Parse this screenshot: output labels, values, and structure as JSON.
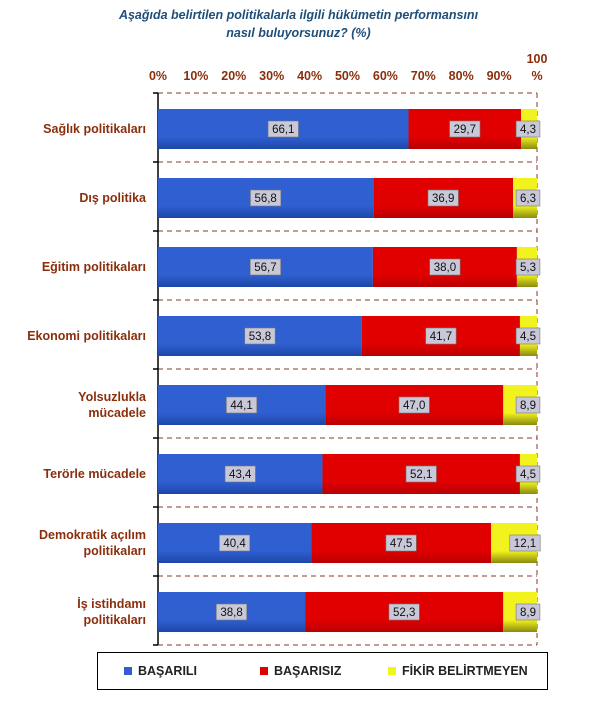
{
  "title_lines": [
    "Aşağıda belirtilen politikalarla ilgili hükümetin performansını",
    "nasıl buluyorsunuz? (%)"
  ],
  "colors": {
    "basarili": "#2f5fd0",
    "basarisiz": "#e00000",
    "fikir": "#f2f21e",
    "axis_text": "#8b2e0c",
    "title": "#1f4e79"
  },
  "chart_data": {
    "type": "bar",
    "orientation": "horizontal",
    "stacked": true,
    "categories": [
      [
        "Sağlık politikaları"
      ],
      [
        "Dış politika"
      ],
      [
        "Eğitim politikaları"
      ],
      [
        "Ekonomi politikaları"
      ],
      [
        "Yolsuzlukla",
        "mücadele"
      ],
      [
        "Terörle mücadele"
      ],
      [
        "Demokratik açılım",
        "politikaları"
      ],
      [
        "İş istihdamı",
        "politikaları"
      ]
    ],
    "series": [
      {
        "name": "BAŞARILI",
        "values": [
          66.1,
          56.8,
          56.7,
          53.8,
          44.1,
          43.4,
          40.4,
          38.8
        ],
        "labels": [
          "66,1",
          "56,8",
          "56,7",
          "53,8",
          "44,1",
          "43,4",
          "40,4",
          "38,8"
        ]
      },
      {
        "name": "BAŞARISIZ",
        "values": [
          29.7,
          36.9,
          38.0,
          41.7,
          47.0,
          52.1,
          47.5,
          52.3
        ],
        "labels": [
          "29,7",
          "36,9",
          "38,0",
          "41,7",
          "47,0",
          "52,1",
          "47,5",
          "52,3"
        ]
      },
      {
        "name": "FİKİR BELİRTMEYEN",
        "values": [
          4.3,
          6.3,
          5.3,
          4.5,
          8.9,
          4.5,
          12.1,
          8.9
        ],
        "labels": [
          "4,3",
          "6,3",
          "5,3",
          "4,5",
          "8,9",
          "4,5",
          "12,1",
          "8,9"
        ]
      }
    ],
    "xticks": [
      "0%",
      "10%",
      "20%",
      "30%",
      "40%",
      "50%",
      "60%",
      "70%",
      "80%",
      "90%",
      "100",
      "%"
    ],
    "xlim": [
      0,
      100
    ],
    "grid": "dashed horizontal",
    "legend": "bottom"
  },
  "legend": {
    "items": [
      "BAŞARILI",
      "BAŞARISIZ",
      "FİKİR BELİRTMEYEN"
    ]
  }
}
